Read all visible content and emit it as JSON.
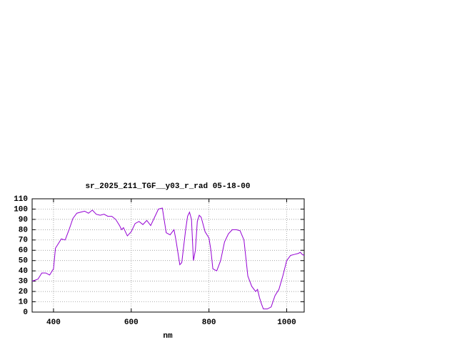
{
  "chart_data": {
    "type": "line",
    "title": "sr_2025_211_TGF__y03_r_rad 05-18-00",
    "x_label": "nm",
    "x": [
      345,
      360,
      370,
      380,
      390,
      400,
      405,
      420,
      430,
      440,
      450,
      460,
      470,
      480,
      490,
      500,
      510,
      520,
      530,
      540,
      550,
      560,
      570,
      575,
      580,
      590,
      600,
      610,
      620,
      630,
      640,
      650,
      660,
      670,
      680,
      690,
      700,
      710,
      715,
      725,
      730,
      740,
      745,
      750,
      755,
      760,
      765,
      770,
      775,
      780,
      790,
      800,
      805,
      810,
      820,
      830,
      840,
      850,
      860,
      870,
      880,
      890,
      900,
      910,
      920,
      925,
      930,
      935,
      940,
      950,
      960,
      970,
      980,
      990,
      1000,
      1010,
      1020,
      1030,
      1035,
      1040,
      1045
    ],
    "series": [
      {
        "name": "sr_2025_211_TGF__y03_r_rad",
        "color": "#9400d3",
        "values": [
          30,
          32,
          38,
          38,
          36,
          42,
          62,
          71,
          70,
          80,
          91,
          96,
          97,
          98,
          96,
          99,
          95,
          94,
          95,
          93,
          93,
          90,
          84,
          80,
          82,
          74,
          78,
          86,
          88,
          85,
          89,
          84,
          92,
          100,
          101,
          77,
          75,
          80,
          70,
          46,
          48,
          80,
          93,
          97,
          90,
          50,
          60,
          88,
          94,
          92,
          78,
          72,
          60,
          42,
          40,
          50,
          68,
          76,
          80,
          80,
          79,
          70,
          35,
          25,
          20,
          22,
          14,
          8,
          3,
          3,
          5,
          16,
          22,
          35,
          50,
          55,
          56,
          57,
          58,
          56,
          55
        ]
      }
    ],
    "xlim": [
      345,
      1045
    ],
    "ylim": [
      0,
      110
    ],
    "xticks": [
      400,
      600,
      800,
      1000
    ],
    "yticks": [
      0,
      10,
      20,
      30,
      40,
      50,
      60,
      70,
      80,
      90,
      100,
      110
    ],
    "grid": true
  }
}
